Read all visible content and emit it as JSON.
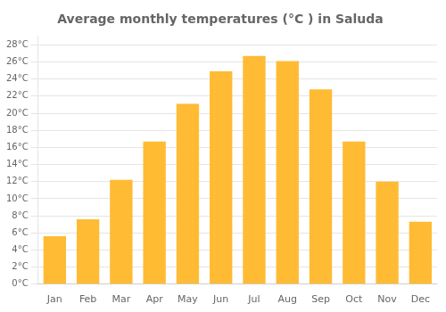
{
  "chart_data": {
    "type": "bar",
    "title": "Average monthly temperatures (°C ) in Saluda",
    "categories": [
      "Jan",
      "Feb",
      "Mar",
      "Apr",
      "May",
      "Jun",
      "Jul",
      "Aug",
      "Sep",
      "Oct",
      "Nov",
      "Dec"
    ],
    "values": [
      5.6,
      7.6,
      12.2,
      16.7,
      21.1,
      24.9,
      26.7,
      26.1,
      22.8,
      16.7,
      12.0,
      7.3
    ],
    "color": "#FFBB33",
    "ylim": [
      0,
      29
    ],
    "yticks": [
      {
        "value": 0,
        "label": "0°C"
      },
      {
        "value": 2,
        "label": "2°C"
      },
      {
        "value": 4,
        "label": "4°C"
      },
      {
        "value": 6,
        "label": "6°C"
      },
      {
        "value": 8,
        "label": "8°C"
      },
      {
        "value": 10,
        "label": "10°C"
      },
      {
        "value": 12,
        "label": "12°C"
      },
      {
        "value": 14,
        "label": "14°C"
      },
      {
        "value": 16,
        "label": "16°C"
      },
      {
        "value": 18,
        "label": "18°C"
      },
      {
        "value": 20,
        "label": "20°C"
      },
      {
        "value": 22,
        "label": "22°C"
      },
      {
        "value": 24,
        "label": "24°C"
      },
      {
        "value": 26,
        "label": "26°C"
      },
      {
        "value": 28,
        "label": "28°C"
      }
    ],
    "grid": true
  }
}
